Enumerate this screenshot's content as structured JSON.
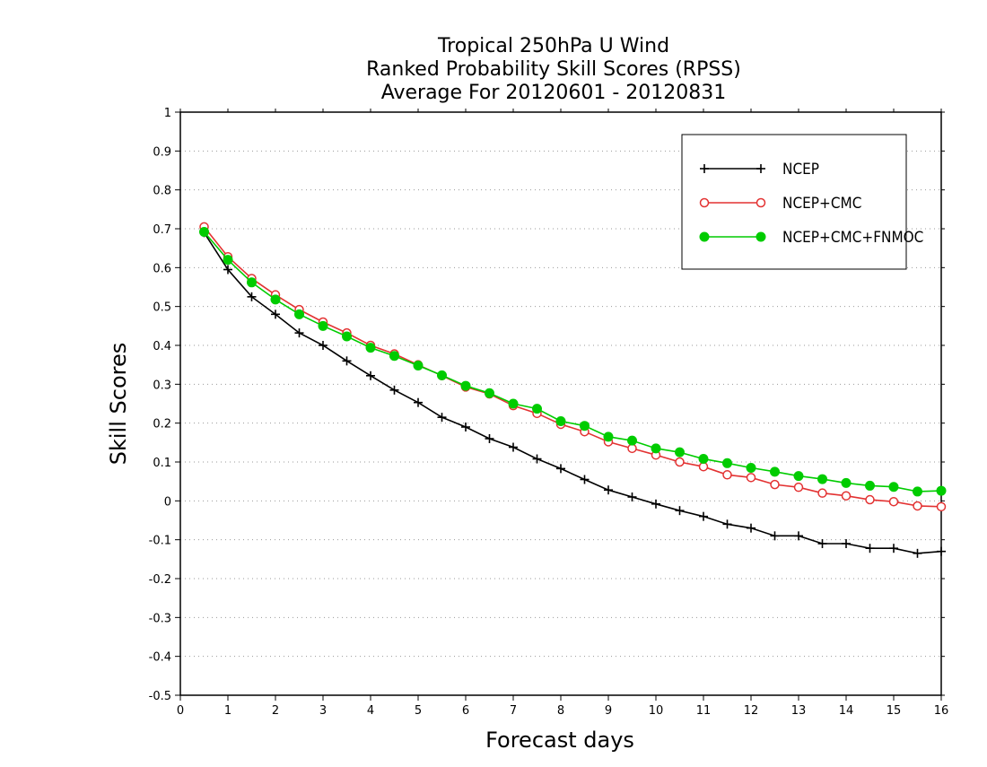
{
  "chart_data": {
    "type": "line",
    "title": [
      "Tropical 250hPa U Wind",
      "Ranked Probability Skill Scores (RPSS)",
      "Average For 20120601 - 20120831"
    ],
    "xlabel": "Forecast days",
    "ylabel": "Skill Scores",
    "xlim": [
      0,
      16
    ],
    "ylim": [
      -0.5,
      1
    ],
    "xticks": [
      "0",
      "1",
      "2",
      "3",
      "4",
      "5",
      "6",
      "7",
      "8",
      "9",
      "10",
      "11",
      "12",
      "13",
      "14",
      "15",
      "16"
    ],
    "yticks": [
      "-0.5",
      "-0.4",
      "-0.3",
      "-0.2",
      "-0.1",
      "0",
      "0.1",
      "0.2",
      "0.3",
      "0.4",
      "0.5",
      "0.6",
      "0.7",
      "0.8",
      "0.9",
      "1"
    ],
    "grid": "horizontal dotted",
    "legend_position": "top-right",
    "x": [
      0.5,
      1,
      1.5,
      2,
      2.5,
      3,
      3.5,
      4,
      4.5,
      5,
      5.5,
      6,
      6.5,
      7,
      7.5,
      8,
      8.5,
      9,
      9.5,
      10,
      10.5,
      11,
      11.5,
      12,
      12.5,
      13,
      13.5,
      14,
      14.5,
      15,
      15.5,
      16
    ],
    "series": [
      {
        "name": "NCEP",
        "color": "#000000",
        "marker": "plus",
        "values": [
          0.69,
          0.595,
          0.525,
          0.48,
          0.432,
          0.4,
          0.36,
          0.322,
          0.285,
          0.253,
          0.215,
          0.19,
          0.16,
          0.138,
          0.108,
          0.083,
          0.055,
          0.028,
          0.01,
          -0.008,
          -0.025,
          -0.04,
          -0.06,
          -0.07,
          -0.09,
          -0.09,
          -0.11,
          -0.11,
          -0.122,
          -0.122,
          -0.135,
          -0.13
        ]
      },
      {
        "name": "NCEP+CMC",
        "color": "#e33232",
        "marker": "open-circle",
        "values": [
          0.705,
          0.628,
          0.572,
          0.53,
          0.492,
          0.46,
          0.432,
          0.4,
          0.378,
          0.35,
          0.322,
          0.293,
          0.275,
          0.245,
          0.225,
          0.197,
          0.178,
          0.152,
          0.135,
          0.118,
          0.1,
          0.088,
          0.067,
          0.06,
          0.042,
          0.035,
          0.02,
          0.013,
          0.003,
          -0.002,
          -0.013,
          -0.015
        ]
      },
      {
        "name": "NCEP+CMC+FNMOC",
        "color": "#00cc00",
        "marker": "filled-circle",
        "values": [
          0.692,
          0.62,
          0.562,
          0.518,
          0.48,
          0.45,
          0.423,
          0.394,
          0.373,
          0.348,
          0.323,
          0.296,
          0.277,
          0.25,
          0.237,
          0.205,
          0.193,
          0.165,
          0.155,
          0.135,
          0.125,
          0.108,
          0.097,
          0.085,
          0.075,
          0.064,
          0.056,
          0.046,
          0.039,
          0.036,
          0.024,
          0.026
        ]
      }
    ]
  }
}
